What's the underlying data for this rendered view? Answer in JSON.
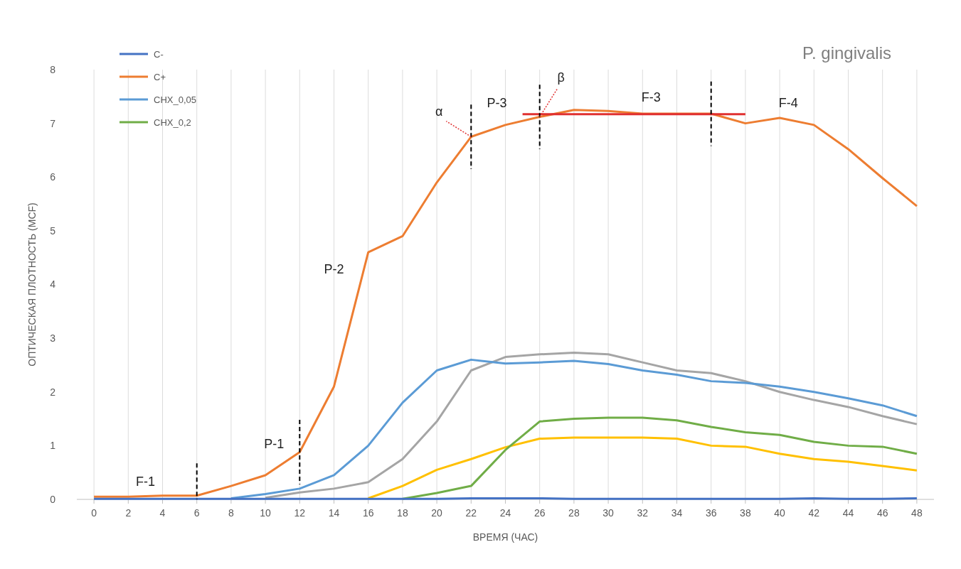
{
  "chart_data": {
    "type": "line",
    "title": "P. gingivalis",
    "xlabel": "ВРЕМЯ (ЧАС)",
    "ylabel": "ОПТИЧЕСКАЯ ПЛОТНОСТЬ (MCF)",
    "x": [
      0,
      2,
      4,
      6,
      8,
      10,
      12,
      14,
      16,
      18,
      20,
      22,
      24,
      26,
      28,
      30,
      32,
      34,
      36,
      38,
      40,
      42,
      44,
      46,
      48
    ],
    "xlim": [
      -1,
      49
    ],
    "xticks": [
      0,
      2,
      4,
      6,
      8,
      10,
      12,
      14,
      16,
      18,
      20,
      22,
      24,
      26,
      28,
      30,
      32,
      34,
      36,
      38,
      40,
      42,
      44,
      46,
      48
    ],
    "ylim": [
      0,
      8
    ],
    "yticks": [
      0,
      1,
      2,
      3,
      4,
      5,
      6,
      7,
      8
    ],
    "grid": "x",
    "legend": "top left",
    "line_style": "solid",
    "marker": "none",
    "series": [
      {
        "name": "C-",
        "color": "#4472c4",
        "values": [
          0.01,
          0.01,
          0.01,
          0.01,
          0.01,
          0.01,
          0.01,
          0.01,
          0.01,
          0.01,
          0.01,
          0.02,
          0.02,
          0.02,
          0.01,
          0.01,
          0.01,
          0.01,
          0.01,
          0.01,
          0.01,
          0.02,
          0.01,
          0.01,
          0.02
        ]
      },
      {
        "name": "C+",
        "color": "#ed7d31",
        "values": [
          0.05,
          0.05,
          0.07,
          0.07,
          0.25,
          0.45,
          0.88,
          2.1,
          4.6,
          4.9,
          5.9,
          6.75,
          6.97,
          7.12,
          7.25,
          7.23,
          7.18,
          7.18,
          7.18,
          7.0,
          7.1,
          6.97,
          6.52,
          5.98,
          5.46
        ]
      },
      {
        "color": "#a5a5a5",
        "values": [
          null,
          null,
          null,
          null,
          null,
          0.03,
          0.13,
          0.2,
          0.32,
          0.75,
          1.45,
          2.4,
          2.65,
          2.7,
          2.73,
          2.7,
          2.55,
          2.4,
          2.35,
          2.2,
          2.0,
          1.85,
          1.72,
          1.55,
          1.4
        ]
      },
      {
        "color": "#ffc000",
        "values": [
          null,
          null,
          null,
          null,
          null,
          null,
          null,
          null,
          0.02,
          0.25,
          0.55,
          0.75,
          0.97,
          1.13,
          1.15,
          1.15,
          1.15,
          1.13,
          1.0,
          0.98,
          0.85,
          0.75,
          0.7,
          0.62,
          0.54
        ]
      },
      {
        "name": "CHX_0,05",
        "color": "#5b9bd5",
        "values": [
          null,
          null,
          null,
          null,
          0.02,
          0.1,
          0.2,
          0.45,
          1.0,
          1.8,
          2.4,
          2.6,
          2.53,
          2.55,
          2.58,
          2.52,
          2.4,
          2.32,
          2.2,
          2.17,
          2.1,
          2.0,
          1.88,
          1.75,
          1.55
        ]
      },
      {
        "name": "CHX_0,2",
        "color": "#70ad47",
        "values": [
          null,
          null,
          null,
          null,
          null,
          null,
          null,
          null,
          null,
          0.01,
          0.12,
          0.25,
          0.92,
          1.45,
          1.5,
          1.52,
          1.52,
          1.47,
          1.35,
          1.25,
          1.2,
          1.07,
          1.0,
          0.98,
          0.85
        ]
      },
      {
        "color": "#e03030",
        "x": [
          25,
          38
        ],
        "values": [
          7.17,
          7.17
        ]
      }
    ],
    "ref_lines": [
      {
        "axis": "x",
        "value": 6,
        "color": "#000000",
        "line_style": "dashed"
      },
      {
        "axis": "x",
        "value": 12,
        "color": "#000000",
        "line_style": "dashed"
      },
      {
        "axis": "x",
        "value": 22,
        "color": "#000000",
        "line_style": "dashed"
      },
      {
        "axis": "x",
        "value": 26,
        "color": "#000000",
        "line_style": "dashed"
      },
      {
        "axis": "x",
        "value": 36,
        "color": "#000000",
        "line_style": "dashed"
      }
    ],
    "annotations": [
      "F-1",
      "P-1",
      "P-2",
      "P-3",
      {
        "text": "α",
        "x": 22,
        "y": 6.75
      },
      {
        "text": "β",
        "x": 26,
        "y": 7.12
      },
      "F-3",
      "F-4"
    ]
  }
}
